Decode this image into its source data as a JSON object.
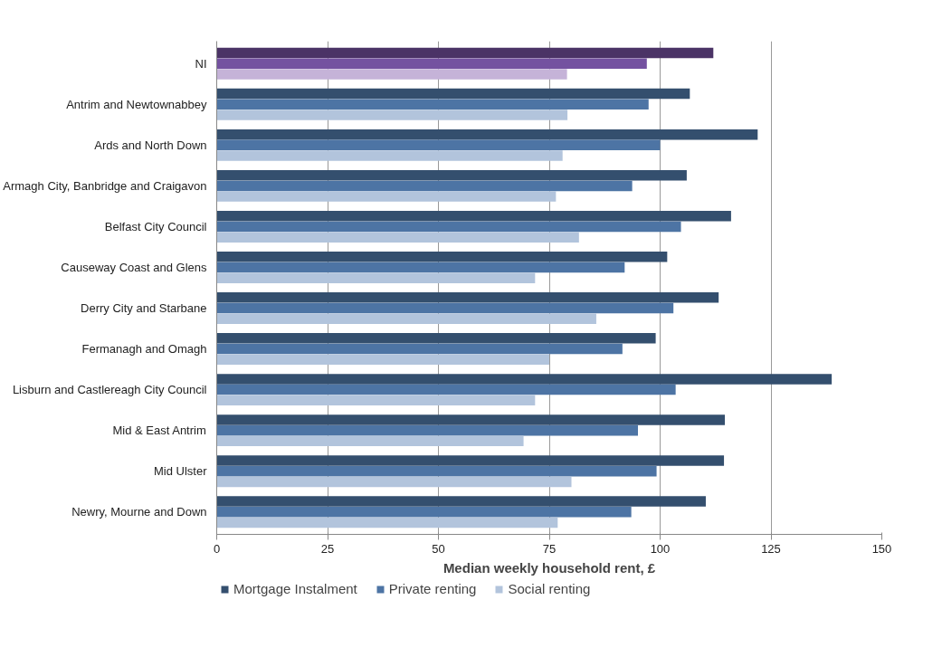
{
  "chart_data": {
    "type": "bar",
    "orientation": "horizontal",
    "xlabel": "Median weekly household rent, £",
    "categories": [
      "NI",
      "Antrim and Newtownabbey",
      "Ards and North Down",
      "Armagh City, Banbridge and Craigavon",
      "Belfast City Council",
      "Causeway Coast and Glens",
      "Derry City and Starbane",
      "Fermanagh and Omagh",
      "Lisburn and Castlereagh City Council",
      "Mid & East Antrim",
      "Mid Ulster",
      "Newry, Mourne and Down"
    ],
    "series": [
      {
        "name": "Mortgage Instalment",
        "color": "#344f6e",
        "colors": [
          "#4b3366",
          "#344f6e",
          "#344f6e",
          "#344f6e",
          "#344f6e",
          "#344f6e",
          "#344f6e",
          "#344f6e",
          "#344f6e",
          "#344f6e",
          "#344f6e",
          "#344f6e"
        ],
        "values": [
          112,
          106.7,
          122,
          106,
          116,
          101.6,
          113.2,
          99,
          138.7,
          114.6,
          114.4,
          110.3
        ]
      },
      {
        "name": "Private renting",
        "color": "#4d74a4",
        "colors": [
          "#7452a0",
          "#4d74a4",
          "#4d74a4",
          "#4d74a4",
          "#4d74a4",
          "#4d74a4",
          "#4d74a4",
          "#4d74a4",
          "#4d74a4",
          "#4d74a4",
          "#4d74a4",
          "#4d74a4"
        ],
        "values": [
          97,
          97.4,
          100,
          93.7,
          104.7,
          92,
          103,
          91.5,
          103.5,
          95,
          99.2,
          93.5
        ]
      },
      {
        "name": "Social renting",
        "color": "#b2c4dc",
        "colors": [
          "#c5b3d8",
          "#b2c4dc",
          "#b2c4dc",
          "#b2c4dc",
          "#b2c4dc",
          "#b2c4dc",
          "#b2c4dc",
          "#b2c4dc",
          "#b2c4dc",
          "#b2c4dc",
          "#b2c4dc",
          "#b2c4dc"
        ],
        "values": [
          79,
          79.1,
          78,
          76.5,
          81.7,
          71.8,
          85.6,
          75,
          71.8,
          69.2,
          80,
          76.9
        ]
      }
    ],
    "xlim": [
      0,
      150
    ],
    "xticks": [
      0,
      25,
      50,
      75,
      100,
      125,
      150
    ],
    "grid": "x",
    "legend": "bottom left"
  }
}
